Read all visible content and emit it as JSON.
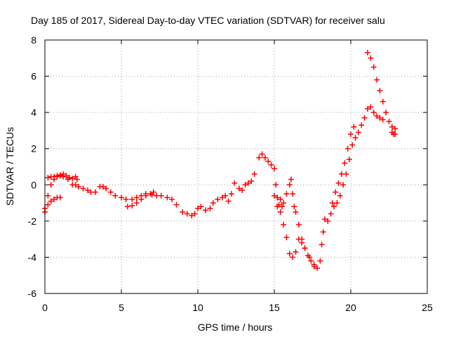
{
  "chart_data": {
    "type": "scatter",
    "title": "Day 185 of 2017, Sidereal Day-to-day VTEC variation (SDTVAR) for receiver salu",
    "xlabel": "GPS time / hours",
    "ylabel": "SDTVAR / TECUs",
    "xlim": [
      0,
      25
    ],
    "ylim": [
      -6,
      8
    ],
    "x_ticks": [
      "0",
      "5",
      "10",
      "15",
      "20",
      "25"
    ],
    "y_ticks": [
      "-6",
      "-4",
      "-2",
      "0",
      "2",
      "4",
      "6",
      "8"
    ],
    "grid": true,
    "marker": "plus",
    "color": "#ff0000",
    "series": [
      {
        "x": [
          0.0,
          0.2,
          0.4,
          0.6,
          0.8,
          1.0,
          1.2,
          1.5,
          1.8,
          2.0,
          2.2,
          2.5,
          2.8,
          3.0,
          3.3,
          3.6,
          3.8,
          4.0,
          4.3,
          4.6,
          5.0,
          5.3,
          5.7,
          6.0,
          6.3,
          6.6,
          7.0,
          7.3,
          7.6,
          8.0,
          8.3,
          8.6,
          9.0,
          9.3,
          9.6,
          9.8,
          10.0,
          10.2,
          10.5,
          10.8,
          11.0,
          11.3,
          11.6,
          11.8,
          12.0,
          12.2,
          12.4,
          12.7,
          12.9,
          13.1,
          13.3,
          13.5,
          13.7
        ],
        "y": [
          -1.3,
          -0.6,
          0.0,
          0.3,
          0.45,
          0.5,
          0.45,
          0.3,
          0.0,
          0.0,
          -0.1,
          -0.2,
          -0.3,
          -0.4,
          -0.4,
          -0.1,
          -0.1,
          -0.2,
          -0.4,
          -0.6,
          -0.7,
          -0.8,
          -0.8,
          -0.7,
          -0.6,
          -0.5,
          -0.55,
          -0.6,
          -0.6,
          -0.7,
          -0.8,
          -1.1,
          -1.5,
          -1.6,
          -1.7,
          -1.6,
          -1.3,
          -1.2,
          -1.4,
          -1.3,
          -1.0,
          -0.8,
          -0.7,
          -0.6,
          -0.9,
          -0.5,
          0.1,
          -0.2,
          -0.3,
          0.0,
          0.1,
          0.2,
          0.6
        ]
      },
      {
        "x": [
          0.0,
          0.2,
          0.4,
          0.6,
          0.8,
          1.0
        ],
        "y": [
          -1.5,
          -1.1,
          -0.9,
          -0.8,
          -0.7,
          -0.7
        ]
      },
      {
        "x": [
          0.2,
          0.4,
          0.6,
          0.8,
          1.0,
          1.2,
          1.4,
          1.6,
          1.8,
          2.0,
          2.1
        ],
        "y": [
          0.4,
          0.45,
          0.45,
          0.5,
          0.55,
          0.6,
          0.5,
          0.4,
          0.35,
          0.45,
          0.3
        ]
      },
      {
        "x": [
          5.4,
          5.7,
          6.0,
          6.3,
          6.6,
          6.9,
          7.1
        ],
        "y": [
          -1.2,
          -1.15,
          -1.0,
          -0.8,
          -0.6,
          -0.5,
          -0.4
        ]
      },
      {
        "x": [
          14.0,
          14.2,
          14.4,
          14.6,
          14.8,
          15.0,
          15.1,
          15.2,
          15.3,
          15.4,
          15.5,
          15.6,
          15.8,
          16.0,
          16.1,
          16.2,
          16.3,
          16.4,
          16.6,
          16.8,
          17.0,
          17.2,
          17.4,
          17.6,
          17.8,
          18.0,
          18.1,
          18.2,
          18.3
        ],
        "y": [
          1.5,
          1.7,
          1.5,
          1.3,
          1.1,
          0.9,
          0.0,
          -0.7,
          -1.1,
          -0.8,
          -1.2,
          -1.0,
          -0.5,
          0.0,
          0.3,
          -0.5,
          -1.2,
          -1.5,
          -2.2,
          -3.0,
          -3.5,
          -3.9,
          -4.2,
          -4.5,
          -4.6,
          -4.2,
          -3.3,
          -2.6,
          -1.9
        ]
      },
      {
        "x": [
          15.0,
          15.2,
          15.4,
          15.6,
          15.8,
          16.0,
          16.2,
          16.4,
          16.6,
          16.8,
          17.0,
          17.3,
          17.6
        ],
        "y": [
          -0.6,
          -1.2,
          -1.5,
          -2.2,
          -2.9,
          -3.8,
          -4.0,
          -3.7,
          -3.0,
          -3.2,
          -3.5,
          -4.0,
          -4.4
        ]
      },
      {
        "x": [
          18.5,
          18.7,
          18.9,
          19.1,
          19.3,
          19.5,
          19.7,
          19.9,
          20.1,
          20.3,
          20.5,
          20.7,
          20.9,
          21.1,
          21.3,
          21.5,
          21.7,
          21.9,
          22.1
        ],
        "y": [
          -2.0,
          -1.6,
          -1.2,
          -1.0,
          -0.6,
          0.0,
          0.6,
          1.4,
          2.2,
          2.6,
          2.9,
          3.3,
          3.7,
          4.2,
          4.3,
          4.0,
          3.8,
          3.7,
          3.6
        ]
      },
      {
        "x": [
          18.8,
          19.0,
          19.2,
          19.4,
          19.6,
          19.8,
          20.0,
          20.2
        ],
        "y": [
          -1.0,
          -0.4,
          0.1,
          0.6,
          1.2,
          2.0,
          2.8,
          3.2
        ]
      },
      {
        "x": [
          21.1,
          21.3,
          21.5,
          21.7,
          21.9,
          22.1,
          22.3,
          22.5,
          22.7,
          22.9
        ],
        "y": [
          7.3,
          7.0,
          6.5,
          5.8,
          5.2,
          4.6,
          4.0,
          3.5,
          3.2,
          3.1
        ]
      },
      {
        "x": [
          22.7,
          22.8,
          22.9
        ],
        "y": [
          2.9,
          2.8,
          2.8
        ]
      }
    ]
  }
}
